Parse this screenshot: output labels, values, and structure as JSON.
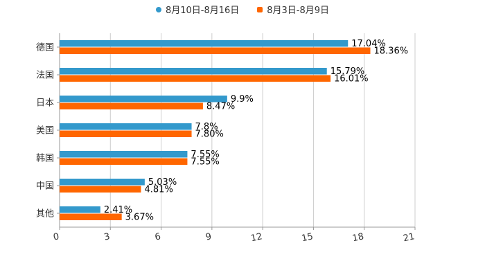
{
  "colors": {
    "series_a": "#3399cc",
    "series_b": "#ff6600",
    "grid": "#cccccc",
    "axis": "#999999",
    "text": "#333333"
  },
  "legend": {
    "series_a_label": "8月10日-8月16日",
    "series_b_label": "8月3日-8月9日"
  },
  "chart_data": {
    "type": "bar",
    "orientation": "horizontal",
    "title": "",
    "xlabel": "",
    "ylabel": "",
    "xlim": [
      0,
      21
    ],
    "xticks": [
      0,
      3,
      6,
      9,
      12,
      15,
      18,
      21
    ],
    "categories": [
      "德国",
      "法国",
      "日本",
      "美国",
      "韩国",
      "中国",
      "其他"
    ],
    "series": [
      {
        "name": "8月10日-8月16日",
        "values": [
          17.04,
          15.79,
          9.9,
          7.8,
          7.55,
          5.03,
          2.41
        ],
        "labels": [
          "17.04%",
          "15.79%",
          "9.9%",
          "7.8%",
          "7.55%",
          "5.03%",
          "2.41%"
        ]
      },
      {
        "name": "8月3日-8月9日",
        "values": [
          18.36,
          16.01,
          8.47,
          7.8,
          7.55,
          4.81,
          3.67
        ],
        "labels": [
          "18.36%",
          "16.01%",
          "8.47%",
          "7.80%",
          "7.55%",
          "4.81%",
          "3.67%"
        ]
      }
    ],
    "grid": true,
    "legend_position": "top-center"
  }
}
